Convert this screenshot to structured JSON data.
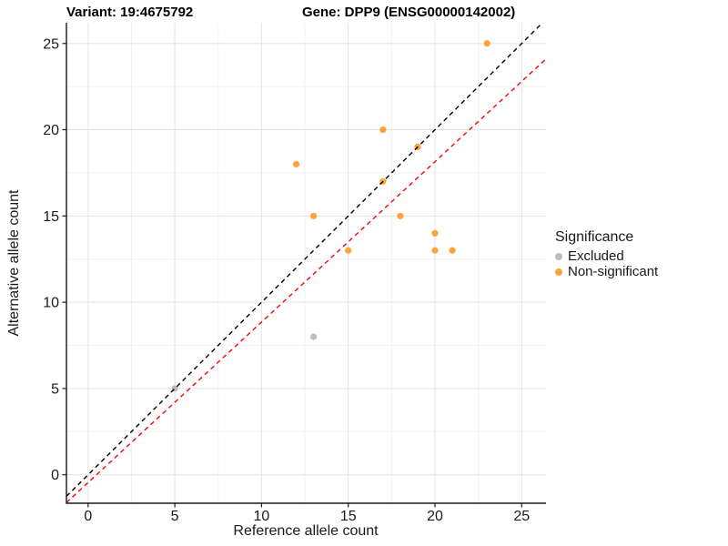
{
  "header": {
    "variant_title": "Variant: 19:4675792",
    "gene_title": "Gene: DPP9 (ENSG00000142002)"
  },
  "chart_data": {
    "type": "scatter",
    "xlabel": "Reference allele count",
    "ylabel": "Alternative allele count",
    "xlim": [
      -1.25,
      26.4
    ],
    "ylim": [
      -1.65,
      26.2
    ],
    "x_ticks": [
      0,
      5,
      10,
      15,
      20,
      25
    ],
    "y_ticks": [
      0,
      5,
      10,
      15,
      20,
      25
    ],
    "minor_step": 2.5,
    "grid": true,
    "legend_title": "Significance",
    "legend_position": "right",
    "series": [
      {
        "name": "Excluded",
        "color": "#BDBDBD",
        "points": [
          [
            5,
            5
          ],
          [
            13,
            8
          ]
        ]
      },
      {
        "name": "Non-significant",
        "color": "#FAA43A",
        "points": [
          [
            12,
            18
          ],
          [
            13,
            15
          ],
          [
            15,
            13
          ],
          [
            17,
            17
          ],
          [
            17,
            20
          ],
          [
            18,
            15
          ],
          [
            19,
            19
          ],
          [
            20,
            13
          ],
          [
            20,
            14
          ],
          [
            21,
            13
          ],
          [
            23,
            25
          ]
        ]
      }
    ],
    "lines": [
      {
        "name": "fitted-ratio-line",
        "slope": 0.93,
        "intercept": -0.45,
        "color": "#FF0000",
        "dash": "5,4"
      },
      {
        "name": "identity-line",
        "slope": 1,
        "intercept": 0,
        "color": "#000000",
        "dash": "5,4"
      }
    ],
    "style": {
      "major_grid_color": "#E4E4E4",
      "minor_grid_color": "#F2F2F2",
      "axis_color": "#1A1A1A",
      "tick_label_color": "#1A1A1A",
      "point_radius": 3.6
    }
  }
}
